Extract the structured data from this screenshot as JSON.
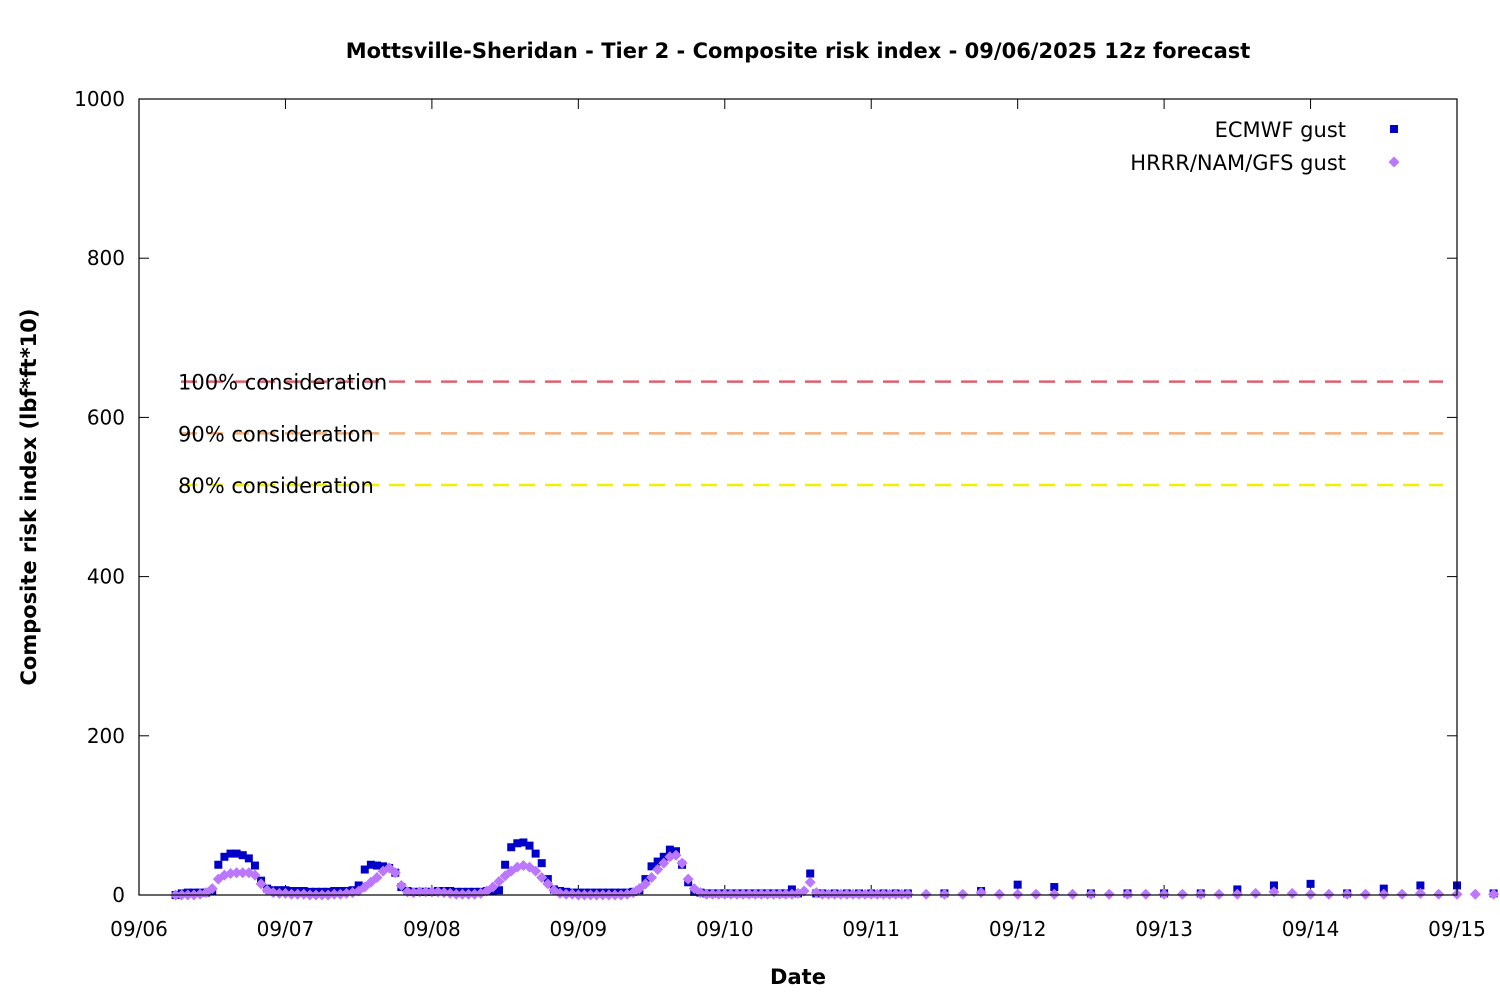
{
  "chart_data": {
    "type": "scatter",
    "title": "Mottsville-Sheridan - Tier 2 - Composite risk index - 09/06/2025 12z forecast",
    "xlabel": "Date",
    "ylabel": "Composite risk index (lbf*ft*10)",
    "xlim": [
      "09/06",
      "09/15"
    ],
    "ylim": [
      0,
      1000
    ],
    "x_ticks": [
      "09/06",
      "09/07",
      "09/08",
      "09/09",
      "09/10",
      "09/11",
      "09/12",
      "09/13",
      "09/14",
      "09/15"
    ],
    "y_ticks": [
      0,
      200,
      400,
      600,
      800,
      1000
    ],
    "grid": false,
    "legend_position": "top-right",
    "thresholds": [
      {
        "label": "100% consideration",
        "value": 645,
        "color": "#e06070"
      },
      {
        "label": "90% consideration",
        "value": 580,
        "color": "#f4b07a"
      },
      {
        "label": "80% consideration",
        "value": 515,
        "color": "#f0f000"
      }
    ],
    "series": [
      {
        "name": "ECMWF gust",
        "color": "#0000c8",
        "marker": "square",
        "points": [
          [
            "09/06 06:00",
            0
          ],
          [
            "09/06 07:00",
            2
          ],
          [
            "09/06 08:00",
            3
          ],
          [
            "09/06 09:00",
            3
          ],
          [
            "09/06 10:00",
            3
          ],
          [
            "09/06 11:00",
            3
          ],
          [
            "09/06 12:00",
            5
          ],
          [
            "09/06 13:00",
            38
          ],
          [
            "09/06 14:00",
            48
          ],
          [
            "09/06 15:00",
            52
          ],
          [
            "09/06 16:00",
            52
          ],
          [
            "09/06 17:00",
            50
          ],
          [
            "09/06 18:00",
            46
          ],
          [
            "09/06 19:00",
            37
          ],
          [
            "09/06 20:00",
            18
          ],
          [
            "09/06 21:00",
            8
          ],
          [
            "09/06 22:00",
            6
          ],
          [
            "09/06 23:00",
            6
          ],
          [
            "09/07 00:00",
            6
          ],
          [
            "09/07 01:00",
            5
          ],
          [
            "09/07 02:00",
            5
          ],
          [
            "09/07 03:00",
            5
          ],
          [
            "09/07 04:00",
            4
          ],
          [
            "09/07 05:00",
            4
          ],
          [
            "09/07 06:00",
            4
          ],
          [
            "09/07 07:00",
            4
          ],
          [
            "09/07 08:00",
            5
          ],
          [
            "09/07 09:00",
            5
          ],
          [
            "09/07 10:00",
            5
          ],
          [
            "09/07 11:00",
            6
          ],
          [
            "09/07 12:00",
            12
          ],
          [
            "09/07 13:00",
            32
          ],
          [
            "09/07 14:00",
            38
          ],
          [
            "09/07 15:00",
            37
          ],
          [
            "09/07 16:00",
            36
          ],
          [
            "09/07 17:00",
            34
          ],
          [
            "09/07 18:00",
            28
          ],
          [
            "09/07 19:00",
            10
          ],
          [
            "09/07 20:00",
            5
          ],
          [
            "09/07 21:00",
            4
          ],
          [
            "09/07 22:00",
            4
          ],
          [
            "09/07 23:00",
            4
          ],
          [
            "09/08 00:00",
            4
          ],
          [
            "09/08 01:00",
            5
          ],
          [
            "09/08 02:00",
            5
          ],
          [
            "09/08 03:00",
            5
          ],
          [
            "09/08 04:00",
            4
          ],
          [
            "09/08 05:00",
            4
          ],
          [
            "09/08 06:00",
            4
          ],
          [
            "09/08 07:00",
            4
          ],
          [
            "09/08 08:00",
            4
          ],
          [
            "09/08 09:00",
            5
          ],
          [
            "09/08 10:00",
            5
          ],
          [
            "09/08 11:00",
            6
          ],
          [
            "09/08 12:00",
            38
          ],
          [
            "09/08 13:00",
            60
          ],
          [
            "09/08 14:00",
            65
          ],
          [
            "09/08 15:00",
            66
          ],
          [
            "09/08 16:00",
            62
          ],
          [
            "09/08 17:00",
            52
          ],
          [
            "09/08 18:00",
            40
          ],
          [
            "09/08 19:00",
            20
          ],
          [
            "09/08 20:00",
            7
          ],
          [
            "09/08 21:00",
            5
          ],
          [
            "09/08 22:00",
            4
          ],
          [
            "09/08 23:00",
            3
          ],
          [
            "09/09 00:00",
            3
          ],
          [
            "09/09 01:00",
            3
          ],
          [
            "09/09 02:00",
            3
          ],
          [
            "09/09 03:00",
            3
          ],
          [
            "09/09 04:00",
            3
          ],
          [
            "09/09 05:00",
            3
          ],
          [
            "09/09 06:00",
            3
          ],
          [
            "09/09 07:00",
            3
          ],
          [
            "09/09 08:00",
            3
          ],
          [
            "09/09 09:00",
            4
          ],
          [
            "09/09 10:00",
            6
          ],
          [
            "09/09 11:00",
            20
          ],
          [
            "09/09 12:00",
            36
          ],
          [
            "09/09 13:00",
            42
          ],
          [
            "09/09 14:00",
            48
          ],
          [
            "09/09 15:00",
            57
          ],
          [
            "09/09 16:00",
            55
          ],
          [
            "09/09 17:00",
            38
          ],
          [
            "09/09 18:00",
            16
          ],
          [
            "09/09 19:00",
            4
          ],
          [
            "09/09 20:00",
            3
          ],
          [
            "09/09 21:00",
            2
          ],
          [
            "09/09 22:00",
            2
          ],
          [
            "09/09 23:00",
            2
          ],
          [
            "09/10 00:00",
            2
          ],
          [
            "09/10 01:00",
            2
          ],
          [
            "09/10 02:00",
            2
          ],
          [
            "09/10 03:00",
            2
          ],
          [
            "09/10 04:00",
            2
          ],
          [
            "09/10 05:00",
            2
          ],
          [
            "09/10 06:00",
            2
          ],
          [
            "09/10 07:00",
            2
          ],
          [
            "09/10 08:00",
            2
          ],
          [
            "09/10 09:00",
            2
          ],
          [
            "09/10 10:00",
            2
          ],
          [
            "09/10 11:00",
            7
          ],
          [
            "09/10 12:00",
            2
          ],
          [
            "09/10 14:00",
            27
          ],
          [
            "09/10 15:00",
            2
          ],
          [
            "09/10 16:00",
            2
          ],
          [
            "09/10 18:00",
            2
          ],
          [
            "09/10 20:00",
            2
          ],
          [
            "09/10 22:00",
            2
          ],
          [
            "09/11 00:00",
            2
          ],
          [
            "09/11 02:00",
            2
          ],
          [
            "09/11 04:00",
            2
          ],
          [
            "09/11 06:00",
            2
          ],
          [
            "09/11 12:00",
            2
          ],
          [
            "09/11 18:00",
            5
          ],
          [
            "09/12 00:00",
            13
          ],
          [
            "09/12 06:00",
            10
          ],
          [
            "09/12 12:00",
            2
          ],
          [
            "09/12 18:00",
            2
          ],
          [
            "09/13 00:00",
            2
          ],
          [
            "09/13 06:00",
            2
          ],
          [
            "09/13 12:00",
            7
          ],
          [
            "09/13 18:00",
            12
          ],
          [
            "09/14 00:00",
            14
          ],
          [
            "09/14 06:00",
            2
          ],
          [
            "09/14 12:00",
            8
          ],
          [
            "09/14 18:00",
            12
          ],
          [
            "09/15 00:00",
            12
          ],
          [
            "09/15 06:00",
            2
          ]
        ]
      },
      {
        "name": "HRRR/NAM/GFS gust",
        "color": "#bb77ff",
        "marker": "diamond",
        "points": [
          [
            "09/06 06:00",
            0
          ],
          [
            "09/06 07:00",
            0
          ],
          [
            "09/06 08:00",
            0
          ],
          [
            "09/06 09:00",
            0
          ],
          [
            "09/06 10:00",
            1
          ],
          [
            "09/06 11:00",
            3
          ],
          [
            "09/06 12:00",
            8
          ],
          [
            "09/06 13:00",
            20
          ],
          [
            "09/06 14:00",
            25
          ],
          [
            "09/06 15:00",
            27
          ],
          [
            "09/06 16:00",
            28
          ],
          [
            "09/06 17:00",
            28
          ],
          [
            "09/06 18:00",
            28
          ],
          [
            "09/06 19:00",
            25
          ],
          [
            "09/06 20:00",
            14
          ],
          [
            "09/06 21:00",
            6
          ],
          [
            "09/06 22:00",
            3
          ],
          [
            "09/06 23:00",
            2
          ],
          [
            "09/07 00:00",
            2
          ],
          [
            "09/07 01:00",
            1
          ],
          [
            "09/07 02:00",
            1
          ],
          [
            "09/07 03:00",
            1
          ],
          [
            "09/07 04:00",
            0
          ],
          [
            "09/07 05:00",
            0
          ],
          [
            "09/07 06:00",
            0
          ],
          [
            "09/07 07:00",
            0
          ],
          [
            "09/07 08:00",
            1
          ],
          [
            "09/07 09:00",
            1
          ],
          [
            "09/07 10:00",
            2
          ],
          [
            "09/07 11:00",
            3
          ],
          [
            "09/07 12:00",
            5
          ],
          [
            "09/07 13:00",
            10
          ],
          [
            "09/07 14:00",
            16
          ],
          [
            "09/07 15:00",
            22
          ],
          [
            "09/07 16:00",
            30
          ],
          [
            "09/07 17:00",
            34
          ],
          [
            "09/07 18:00",
            28
          ],
          [
            "09/07 19:00",
            12
          ],
          [
            "09/07 20:00",
            4
          ],
          [
            "09/07 21:00",
            3
          ],
          [
            "09/07 22:00",
            4
          ],
          [
            "09/07 23:00",
            4
          ],
          [
            "09/08 00:00",
            4
          ],
          [
            "09/08 01:00",
            4
          ],
          [
            "09/08 02:00",
            3
          ],
          [
            "09/08 03:00",
            2
          ],
          [
            "09/08 04:00",
            1
          ],
          [
            "09/08 05:00",
            1
          ],
          [
            "09/08 06:00",
            1
          ],
          [
            "09/08 07:00",
            1
          ],
          [
            "09/08 08:00",
            2
          ],
          [
            "09/08 09:00",
            5
          ],
          [
            "09/08 10:00",
            10
          ],
          [
            "09/08 11:00",
            17
          ],
          [
            "09/08 12:00",
            24
          ],
          [
            "09/08 13:00",
            30
          ],
          [
            "09/08 14:00",
            35
          ],
          [
            "09/08 15:00",
            37
          ],
          [
            "09/08 16:00",
            35
          ],
          [
            "09/08 17:00",
            30
          ],
          [
            "09/08 18:00",
            22
          ],
          [
            "09/08 19:00",
            14
          ],
          [
            "09/08 20:00",
            6
          ],
          [
            "09/08 21:00",
            2
          ],
          [
            "09/08 22:00",
            1
          ],
          [
            "09/08 23:00",
            1
          ],
          [
            "09/09 00:00",
            0
          ],
          [
            "09/09 01:00",
            0
          ],
          [
            "09/09 02:00",
            0
          ],
          [
            "09/09 03:00",
            0
          ],
          [
            "09/09 04:00",
            0
          ],
          [
            "09/09 05:00",
            0
          ],
          [
            "09/09 06:00",
            0
          ],
          [
            "09/09 07:00",
            0
          ],
          [
            "09/09 08:00",
            1
          ],
          [
            "09/09 09:00",
            3
          ],
          [
            "09/09 10:00",
            8
          ],
          [
            "09/09 11:00",
            14
          ],
          [
            "09/09 12:00",
            22
          ],
          [
            "09/09 13:00",
            32
          ],
          [
            "09/09 14:00",
            40
          ],
          [
            "09/09 15:00",
            48
          ],
          [
            "09/09 16:00",
            50
          ],
          [
            "09/09 17:00",
            40
          ],
          [
            "09/09 18:00",
            20
          ],
          [
            "09/09 19:00",
            8
          ],
          [
            "09/09 20:00",
            3
          ],
          [
            "09/09 21:00",
            1
          ],
          [
            "09/09 22:00",
            1
          ],
          [
            "09/09 23:00",
            1
          ],
          [
            "09/10 00:00",
            1
          ],
          [
            "09/10 01:00",
            1
          ],
          [
            "09/10 02:00",
            1
          ],
          [
            "09/10 03:00",
            1
          ],
          [
            "09/10 04:00",
            1
          ],
          [
            "09/10 05:00",
            1
          ],
          [
            "09/10 06:00",
            1
          ],
          [
            "09/10 07:00",
            1
          ],
          [
            "09/10 08:00",
            1
          ],
          [
            "09/10 09:00",
            1
          ],
          [
            "09/10 10:00",
            1
          ],
          [
            "09/10 11:00",
            1
          ],
          [
            "09/10 12:00",
            2
          ],
          [
            "09/10 13:00",
            5
          ],
          [
            "09/10 14:00",
            16
          ],
          [
            "09/10 15:00",
            3
          ],
          [
            "09/10 16:00",
            1
          ],
          [
            "09/10 17:00",
            1
          ],
          [
            "09/10 18:00",
            1
          ],
          [
            "09/10 19:00",
            1
          ],
          [
            "09/10 20:00",
            1
          ],
          [
            "09/10 21:00",
            1
          ],
          [
            "09/10 22:00",
            1
          ],
          [
            "09/10 23:00",
            1
          ],
          [
            "09/11 00:00",
            1
          ],
          [
            "09/11 01:00",
            1
          ],
          [
            "09/11 02:00",
            1
          ],
          [
            "09/11 03:00",
            1
          ],
          [
            "09/11 04:00",
            1
          ],
          [
            "09/11 05:00",
            1
          ],
          [
            "09/11 06:00",
            1
          ],
          [
            "09/11 09:00",
            1
          ],
          [
            "09/11 12:00",
            1
          ],
          [
            "09/11 15:00",
            1
          ],
          [
            "09/11 18:00",
            3
          ],
          [
            "09/11 21:00",
            1
          ],
          [
            "09/12 00:00",
            1
          ],
          [
            "09/12 03:00",
            1
          ],
          [
            "09/12 06:00",
            1
          ],
          [
            "09/12 09:00",
            1
          ],
          [
            "09/12 12:00",
            1
          ],
          [
            "09/12 15:00",
            1
          ],
          [
            "09/12 18:00",
            1
          ],
          [
            "09/12 21:00",
            1
          ],
          [
            "09/13 00:00",
            1
          ],
          [
            "09/13 03:00",
            1
          ],
          [
            "09/13 06:00",
            1
          ],
          [
            "09/13 09:00",
            1
          ],
          [
            "09/13 12:00",
            1
          ],
          [
            "09/13 15:00",
            2
          ],
          [
            "09/13 18:00",
            4
          ],
          [
            "09/13 21:00",
            2
          ],
          [
            "09/14 00:00",
            1
          ],
          [
            "09/14 03:00",
            1
          ],
          [
            "09/14 06:00",
            1
          ],
          [
            "09/14 09:00",
            1
          ],
          [
            "09/14 12:00",
            1
          ],
          [
            "09/14 15:00",
            1
          ],
          [
            "09/14 18:00",
            2
          ],
          [
            "09/14 21:00",
            1
          ],
          [
            "09/15 00:00",
            1
          ],
          [
            "09/15 03:00",
            1
          ],
          [
            "09/15 06:00",
            1
          ]
        ]
      }
    ]
  }
}
